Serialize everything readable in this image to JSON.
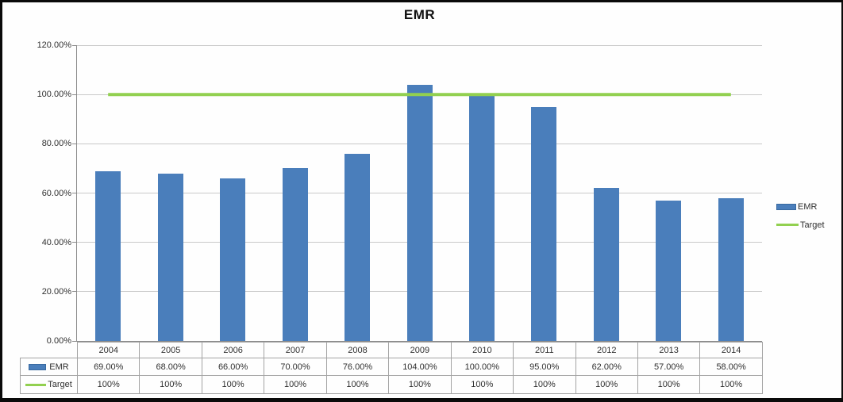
{
  "chart_data": {
    "type": "bar",
    "title": "EMR",
    "categories": [
      "2004",
      "2005",
      "2006",
      "2007",
      "2008",
      "2009",
      "2010",
      "2011",
      "2012",
      "2013",
      "2014"
    ],
    "series": [
      {
        "name": "EMR",
        "chart_type": "bar",
        "color": "#4a7ebb",
        "border_color": "#38699f",
        "values": [
          69,
          68,
          66,
          70,
          76,
          104,
          100,
          95,
          62,
          57,
          58
        ],
        "table_labels": [
          "69.00%",
          "68.00%",
          "66.00%",
          "70.00%",
          "76.00%",
          "104.00%",
          "100.00%",
          "95.00%",
          "62.00%",
          "57.00%",
          "58.00%"
        ]
      },
      {
        "name": "Target",
        "chart_type": "line",
        "color": "#92d050",
        "values": [
          100,
          100,
          100,
          100,
          100,
          100,
          100,
          100,
          100,
          100,
          100
        ],
        "table_labels": [
          "100%",
          "100%",
          "100%",
          "100%",
          "100%",
          "100%",
          "100%",
          "100%",
          "100%",
          "100%",
          "100%"
        ]
      }
    ],
    "y_axis": {
      "min": 0,
      "max": 120,
      "step": 20,
      "tick_labels": [
        "0.00%",
        "20.00%",
        "40.00%",
        "60.00%",
        "80.00%",
        "100.00%",
        "120.00%"
      ]
    },
    "legend": {
      "position": "right",
      "entries": [
        "EMR",
        "Target"
      ]
    },
    "grid": "horizontal",
    "has_data_table": true,
    "colors": {
      "gridline": "#c9c9c9",
      "axis": "#8a8a8a",
      "table_border": "#a3a3a3",
      "text": "#303030"
    }
  }
}
